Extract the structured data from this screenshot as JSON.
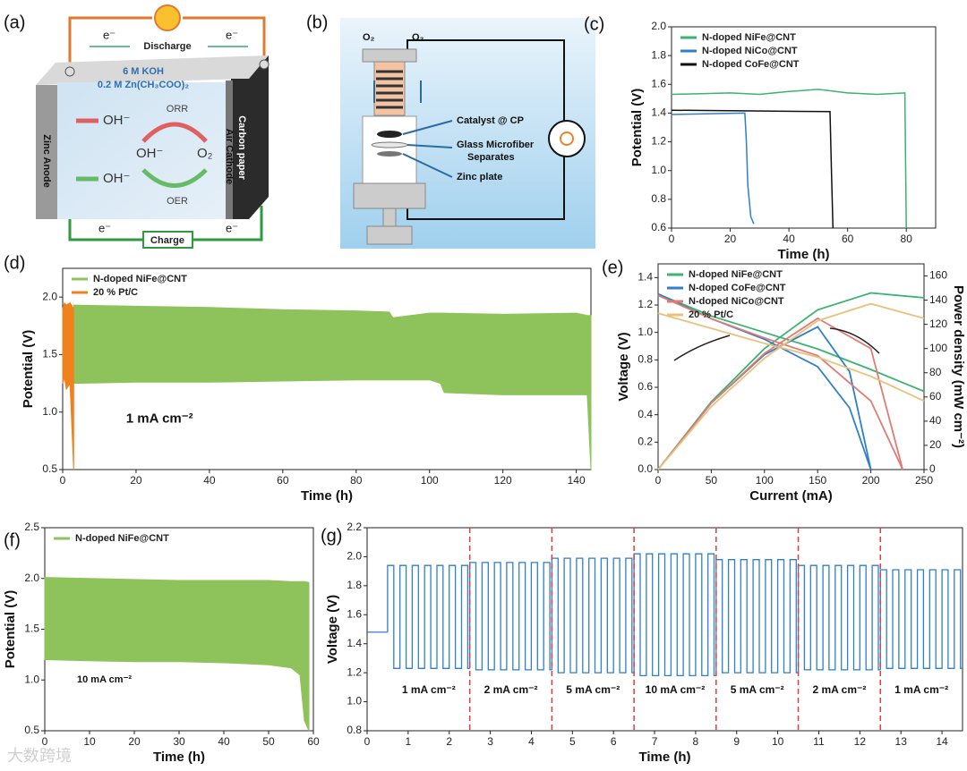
{
  "schematic_a": {
    "panel": "(a)",
    "electron": "e⁻",
    "discharge": "Discharge",
    "charge": "Charge",
    "electrolyte_1": "6 M KOH",
    "electrolyte_2": "0.2 M Zn(CH₃COO)₂",
    "anode": "Zinc Anode",
    "cathode_1": "Carbon paper",
    "cathode_2": "Air Cathode",
    "orr": "ORR",
    "oer": "OER",
    "hydroxide": "OH⁻",
    "oxygen": "O₂"
  },
  "schematic_b": {
    "panel": "(b)",
    "oxygen": "O₂",
    "catalyst": "Catalyst @ CP",
    "separator_1": "Glass Microfiber",
    "separator_2": "Separates",
    "zinc": "Zinc plate"
  },
  "watermark": "大数跨境",
  "chart_data": [
    {
      "type": "line",
      "panel": "(c)",
      "xlabel": "Time (h)",
      "ylabel": "Potential (V)",
      "xlim": [
        0,
        90
      ],
      "xticks": [
        0,
        20,
        40,
        60,
        80
      ],
      "ylim": [
        0.6,
        2.0
      ],
      "yticks": [
        0.6,
        0.8,
        {
          "value": 1,
          "label": "1.0"
        },
        1.2,
        1.4,
        1.6,
        1.8,
        {
          "value": 2,
          "label": "2.0"
        }
      ],
      "legend": "upper left",
      "series": [
        {
          "name": "N-doped NiFe@CNT",
          "color": "#3cb371",
          "x": [
            0,
            10,
            20,
            30,
            40,
            50,
            60,
            70,
            79.5,
            80
          ],
          "values": [
            1.53,
            1.535,
            1.54,
            1.53,
            1.55,
            1.565,
            1.54,
            1.53,
            1.54,
            0.6
          ]
        },
        {
          "name": "N-doped NiCo@CNT",
          "color": "#2f7fc9",
          "x": [
            0,
            25,
            25.5,
            26,
            27,
            28
          ],
          "values": [
            1.39,
            1.4,
            1.2,
            0.9,
            0.68,
            0.63
          ]
        },
        {
          "name": "N-doped CoFe@CNT",
          "color": "#111111",
          "x": [
            0,
            54,
            54.5,
            55
          ],
          "values": [
            1.42,
            1.41,
            1.0,
            0.6
          ]
        }
      ]
    },
    {
      "type": "band",
      "panel": "(d)",
      "xlabel": "Time (h)",
      "ylabel": "Potential (V)",
      "xlim": [
        0,
        144
      ],
      "xticks": [
        0,
        20,
        40,
        60,
        80,
        100,
        120,
        140
      ],
      "ylim": [
        0.5,
        2.25
      ],
      "yticks": [
        0.5,
        {
          "value": 1,
          "label": "1.0"
        },
        1.5,
        {
          "value": 2,
          "label": "2.0"
        }
      ],
      "legend": "upper left",
      "annotation": "1 mA cm⁻²",
      "series": [
        {
          "name": "N-doped NiFe@CNT",
          "color": "#8dc35a",
          "x": [
            3,
            20,
            40,
            60,
            80,
            89,
            90,
            100,
            103,
            104,
            120,
            140,
            143,
            144
          ],
          "high": [
            1.93,
            1.92,
            1.91,
            1.89,
            1.88,
            1.87,
            1.82,
            1.86,
            1.86,
            1.86,
            1.85,
            1.86,
            1.84,
            1.84
          ],
          "low": [
            1.25,
            1.26,
            1.26,
            1.27,
            1.28,
            1.28,
            1.28,
            1.28,
            1.25,
            1.17,
            1.15,
            1.15,
            1.15,
            0.5
          ]
        },
        {
          "name": "20 % Pt/C",
          "color": "#f0821e",
          "x": [
            0,
            0.5,
            1,
            2,
            3
          ],
          "high": [
            1.9,
            1.95,
            1.93,
            1.95,
            1.9
          ],
          "low": [
            1.25,
            1.3,
            1.2,
            1.25,
            0.5
          ]
        }
      ]
    },
    {
      "type": "dual_line",
      "panel": "(e)",
      "xlabel": "Current (mA)",
      "ylabel": "Voltage (V)",
      "y2label": "Power density (mW cm⁻²)",
      "xlim": [
        0,
        250
      ],
      "xticks": [
        0,
        50,
        100,
        150,
        200,
        250
      ],
      "ylim": [
        0,
        1.5
      ],
      "yticks": [
        {
          "value": 0,
          "label": "0.0"
        },
        0.2,
        0.4,
        0.6,
        0.8,
        {
          "value": 1,
          "label": "1.0"
        },
        1.2,
        1.4
      ],
      "y2lim": [
        0,
        170
      ],
      "y2ticks": [
        0,
        20,
        40,
        60,
        80,
        100,
        120,
        140,
        160
      ],
      "legend": "upper left",
      "series": [
        {
          "name": "N-doped NiFe@CNT",
          "color": "#3cb371",
          "x": [
            0,
            50,
            100,
            150,
            200,
            250
          ],
          "values": [
            1.28,
            1.12,
            1.0,
            0.88,
            0.73,
            0.57
          ],
          "power": [
            0,
            56,
            100,
            132,
            146,
            142
          ]
        },
        {
          "name": "N-doped CoFe@CNT",
          "color": "#2f7fc9",
          "x": [
            0,
            50,
            100,
            150,
            180,
            200
          ],
          "values": [
            1.28,
            1.1,
            0.95,
            0.75,
            0.45,
            0.0
          ],
          "power": [
            0,
            55,
            95,
            118,
            81,
            0
          ]
        },
        {
          "name": "N-doped NiCo@CNT",
          "color": "#e07b74",
          "x": [
            0,
            50,
            100,
            150,
            200,
            230
          ],
          "values": [
            1.27,
            1.1,
            0.96,
            0.83,
            0.5,
            0.0
          ],
          "power": [
            0,
            55,
            96,
            125,
            100,
            0
          ]
        },
        {
          "name": "20 % Pt/C",
          "color": "#e8c27a",
          "x": [
            0,
            50,
            100,
            150,
            200,
            250
          ],
          "values": [
            1.14,
            1.03,
            0.92,
            0.82,
            0.68,
            0.5
          ],
          "power": [
            0,
            52,
            92,
            123,
            137,
            125
          ]
        }
      ]
    },
    {
      "type": "band",
      "panel": "(f)",
      "xlabel": "Time (h)",
      "ylabel": "Potential (V)",
      "xlim": [
        0,
        60
      ],
      "xticks": [
        0,
        10,
        20,
        30,
        40,
        50,
        60
      ],
      "ylim": [
        0.5,
        2.5
      ],
      "yticks": [
        0.5,
        {
          "value": 1,
          "label": "1.0"
        },
        1.5,
        {
          "value": 2,
          "label": "2.0"
        },
        2.5
      ],
      "legend": "upper left",
      "annotation": "10 mA cm⁻²",
      "series": [
        {
          "name": "N-doped NiFe@CNT",
          "color": "#8dc35a",
          "x": [
            0,
            10,
            20,
            30,
            40,
            50,
            55,
            57,
            58,
            59
          ],
          "high": [
            2.01,
            2.0,
            1.99,
            1.98,
            1.98,
            1.98,
            1.97,
            1.97,
            1.97,
            1.96
          ],
          "low": [
            1.2,
            1.19,
            1.18,
            1.18,
            1.17,
            1.15,
            1.12,
            1.05,
            0.6,
            0.5
          ]
        }
      ]
    },
    {
      "type": "cycling",
      "panel": "(g)",
      "xlabel": "Time (h)",
      "ylabel": "Voltage (V)",
      "xlim": [
        0,
        14.5
      ],
      "xticks": [
        0,
        1,
        2,
        3,
        4,
        5,
        6,
        7,
        8,
        9,
        10,
        11,
        12,
        13,
        14
      ],
      "ylim": [
        0.8,
        2.2
      ],
      "yticks": [
        0.8,
        {
          "value": 1,
          "label": "1.0"
        },
        1.2,
        1.4,
        1.6,
        1.8,
        {
          "value": 2,
          "label": "2.0"
        },
        2.2
      ],
      "color": "#2f7fc9",
      "divider_color": "#e03c3c",
      "period": 0.3,
      "rest": {
        "x": [
          0,
          0.5
        ],
        "value": 1.48
      },
      "segments": [
        {
          "label": "1 mA cm⁻²",
          "start": 0.5,
          "end": 2.5,
          "high": 1.94,
          "low": 1.23
        },
        {
          "label": "2 mA cm⁻²",
          "start": 2.5,
          "end": 4.5,
          "high": 1.96,
          "low": 1.22
        },
        {
          "label": "5 mA cm⁻²",
          "start": 4.5,
          "end": 6.5,
          "high": 1.99,
          "low": 1.2
        },
        {
          "label": "10 mA cm⁻²",
          "start": 6.5,
          "end": 8.5,
          "high": 2.02,
          "low": 1.18
        },
        {
          "label": "5 mA cm⁻²",
          "start": 8.5,
          "end": 10.5,
          "high": 1.98,
          "low": 1.2
        },
        {
          "label": "2 mA cm⁻²",
          "start": 10.5,
          "end": 12.5,
          "high": 1.94,
          "low": 1.22
        },
        {
          "label": "1 mA cm⁻²",
          "start": 12.5,
          "end": 14.5,
          "high": 1.91,
          "low": 1.23
        }
      ]
    }
  ]
}
